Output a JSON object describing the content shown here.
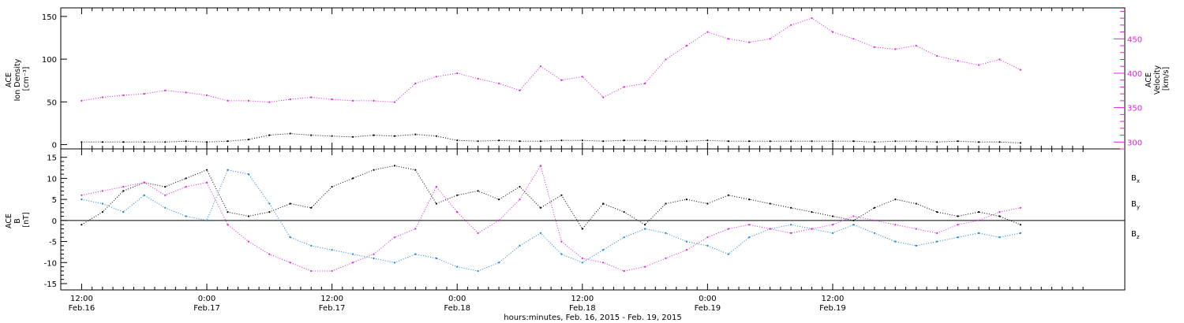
{
  "chart_data": [
    {
      "type": "scatter",
      "ylabel_lines": [
        "ACE",
        "Ion Density",
        "[cm⁻³]"
      ],
      "ylim": [
        -5,
        160
      ],
      "yticks": [
        0,
        50,
        100,
        150
      ],
      "y2label_lines": [
        "ACE",
        "Velocity",
        "[km/s]"
      ],
      "y2lim": [
        290,
        495
      ],
      "y2ticks": [
        300,
        350,
        400,
        450
      ],
      "series": [
        {
          "axis": "left",
          "color": "#000000",
          "x": [
            0,
            2,
            4,
            6,
            8,
            10,
            12,
            14,
            16,
            18,
            20,
            22,
            24,
            26,
            28,
            30,
            32,
            34,
            36,
            38,
            40,
            42,
            44,
            46,
            48,
            50,
            52,
            54,
            56,
            58,
            60,
            62,
            64,
            66,
            68,
            70,
            72,
            74,
            76,
            78,
            80,
            82,
            84,
            86,
            88,
            90
          ],
          "y": [
            3,
            3,
            3,
            3,
            3,
            4,
            3,
            4,
            6,
            11,
            13,
            11,
            10,
            9,
            11,
            10,
            12,
            10,
            5,
            4,
            5,
            4,
            4,
            5,
            5,
            4,
            5,
            5,
            4,
            4,
            5,
            4,
            4,
            4,
            4,
            4,
            4,
            4,
            3,
            4,
            4,
            3,
            4,
            3,
            3,
            2
          ]
        },
        {
          "axis": "right",
          "color": "#e020e0",
          "x": [
            0,
            2,
            4,
            6,
            8,
            10,
            12,
            14,
            16,
            18,
            20,
            22,
            24,
            26,
            28,
            30,
            32,
            34,
            36,
            38,
            40,
            42,
            44,
            46,
            48,
            50,
            52,
            54,
            56,
            58,
            60,
            62,
            64,
            66,
            68,
            70,
            72,
            74,
            76,
            78,
            80,
            82,
            84,
            86,
            88,
            90
          ],
          "y": [
            360,
            365,
            368,
            370,
            375,
            372,
            368,
            360,
            360,
            358,
            362,
            365,
            362,
            360,
            360,
            358,
            385,
            395,
            400,
            392,
            385,
            375,
            410,
            390,
            395,
            365,
            380,
            385,
            420,
            440,
            460,
            450,
            445,
            450,
            470,
            480,
            460,
            450,
            438,
            435,
            440,
            425,
            418,
            412,
            420,
            405
          ]
        }
      ]
    },
    {
      "type": "scatter",
      "ylabel_lines": [
        "ACE",
        "B",
        "[nT]"
      ],
      "ylim": [
        -16.5,
        17
      ],
      "yticks": [
        -15,
        -10,
        -5,
        0,
        5,
        10,
        15
      ],
      "series": [
        {
          "name": "Bx",
          "label_main": "B",
          "label_sub": "x",
          "color": "#000000",
          "x": [
            0,
            2,
            4,
            6,
            8,
            10,
            12,
            14,
            16,
            18,
            20,
            22,
            24,
            26,
            28,
            30,
            32,
            34,
            36,
            38,
            40,
            42,
            44,
            46,
            48,
            50,
            52,
            54,
            56,
            58,
            60,
            62,
            64,
            66,
            68,
            70,
            72,
            74,
            76,
            78,
            80,
            82,
            84,
            86,
            88,
            90
          ],
          "y": [
            -1,
            2,
            7,
            9,
            8,
            10,
            12,
            2,
            1,
            2,
            4,
            3,
            8,
            10,
            12,
            13,
            12,
            4,
            6,
            7,
            5,
            8,
            3,
            6,
            -2,
            4,
            2,
            -1,
            4,
            5,
            4,
            6,
            5,
            4,
            3,
            2,
            1,
            0,
            3,
            5,
            4,
            2,
            1,
            2,
            1,
            -1
          ]
        },
        {
          "name": "By",
          "label_main": "B",
          "label_sub": "y",
          "color": "#1080e0",
          "x": [
            0,
            2,
            4,
            6,
            8,
            10,
            12,
            14,
            16,
            18,
            20,
            22,
            24,
            26,
            28,
            30,
            32,
            34,
            36,
            38,
            40,
            42,
            44,
            46,
            48,
            50,
            52,
            54,
            56,
            58,
            60,
            62,
            64,
            66,
            68,
            70,
            72,
            74,
            76,
            78,
            80,
            82,
            84,
            86,
            88,
            90
          ],
          "y": [
            5,
            4,
            2,
            6,
            3,
            1,
            0,
            12,
            11,
            4,
            -4,
            -6,
            -7,
            -8,
            -9,
            -10,
            -8,
            -9,
            -11,
            -12,
            -10,
            -6,
            -3,
            -8,
            -10,
            -7,
            -4,
            -2,
            -3,
            -5,
            -6,
            -8,
            -4,
            -2,
            -1,
            -2,
            -3,
            -1,
            -3,
            -5,
            -6,
            -5,
            -4,
            -3,
            -4,
            -3
          ]
        },
        {
          "name": "Bz",
          "label_main": "B",
          "label_sub": "z",
          "color": "#e020e0",
          "x": [
            0,
            2,
            4,
            6,
            8,
            10,
            12,
            14,
            16,
            18,
            20,
            22,
            24,
            26,
            28,
            30,
            32,
            34,
            36,
            38,
            40,
            42,
            44,
            46,
            48,
            50,
            52,
            54,
            56,
            58,
            60,
            62,
            64,
            66,
            68,
            70,
            72,
            74,
            76,
            78,
            80,
            82,
            84,
            86,
            88,
            90
          ],
          "y": [
            6,
            7,
            8,
            9,
            6,
            8,
            9,
            -1,
            -5,
            -8,
            -10,
            -12,
            -12,
            -10,
            -8,
            -4,
            -2,
            8,
            2,
            -3,
            0,
            5,
            13,
            -5,
            -9,
            -10,
            -12,
            -11,
            -9,
            -7,
            -4,
            -2,
            -1,
            -2,
            -3,
            -2,
            -1,
            1,
            0,
            -1,
            -2,
            -3,
            -1,
            0,
            2,
            3
          ]
        }
      ]
    }
  ],
  "xaxis": {
    "range": [
      -2,
      100
    ],
    "ticks": [
      {
        "x": 0,
        "time": "12:00",
        "date": "Feb.16"
      },
      {
        "x": 12,
        "time": "0:00",
        "date": "Feb.17"
      },
      {
        "x": 24,
        "time": "12:00",
        "date": "Feb.17"
      },
      {
        "x": 36,
        "time": "0:00",
        "date": "Feb.18"
      },
      {
        "x": 48,
        "time": "12:00",
        "date": "Feb.18"
      },
      {
        "x": 60,
        "time": "0:00",
        "date": "Feb.19"
      },
      {
        "x": 72,
        "time": "12:00",
        "date": "Feb.19"
      }
    ],
    "title": "hours:minutes, Feb. 16, 2015 - Feb. 19, 2015"
  }
}
